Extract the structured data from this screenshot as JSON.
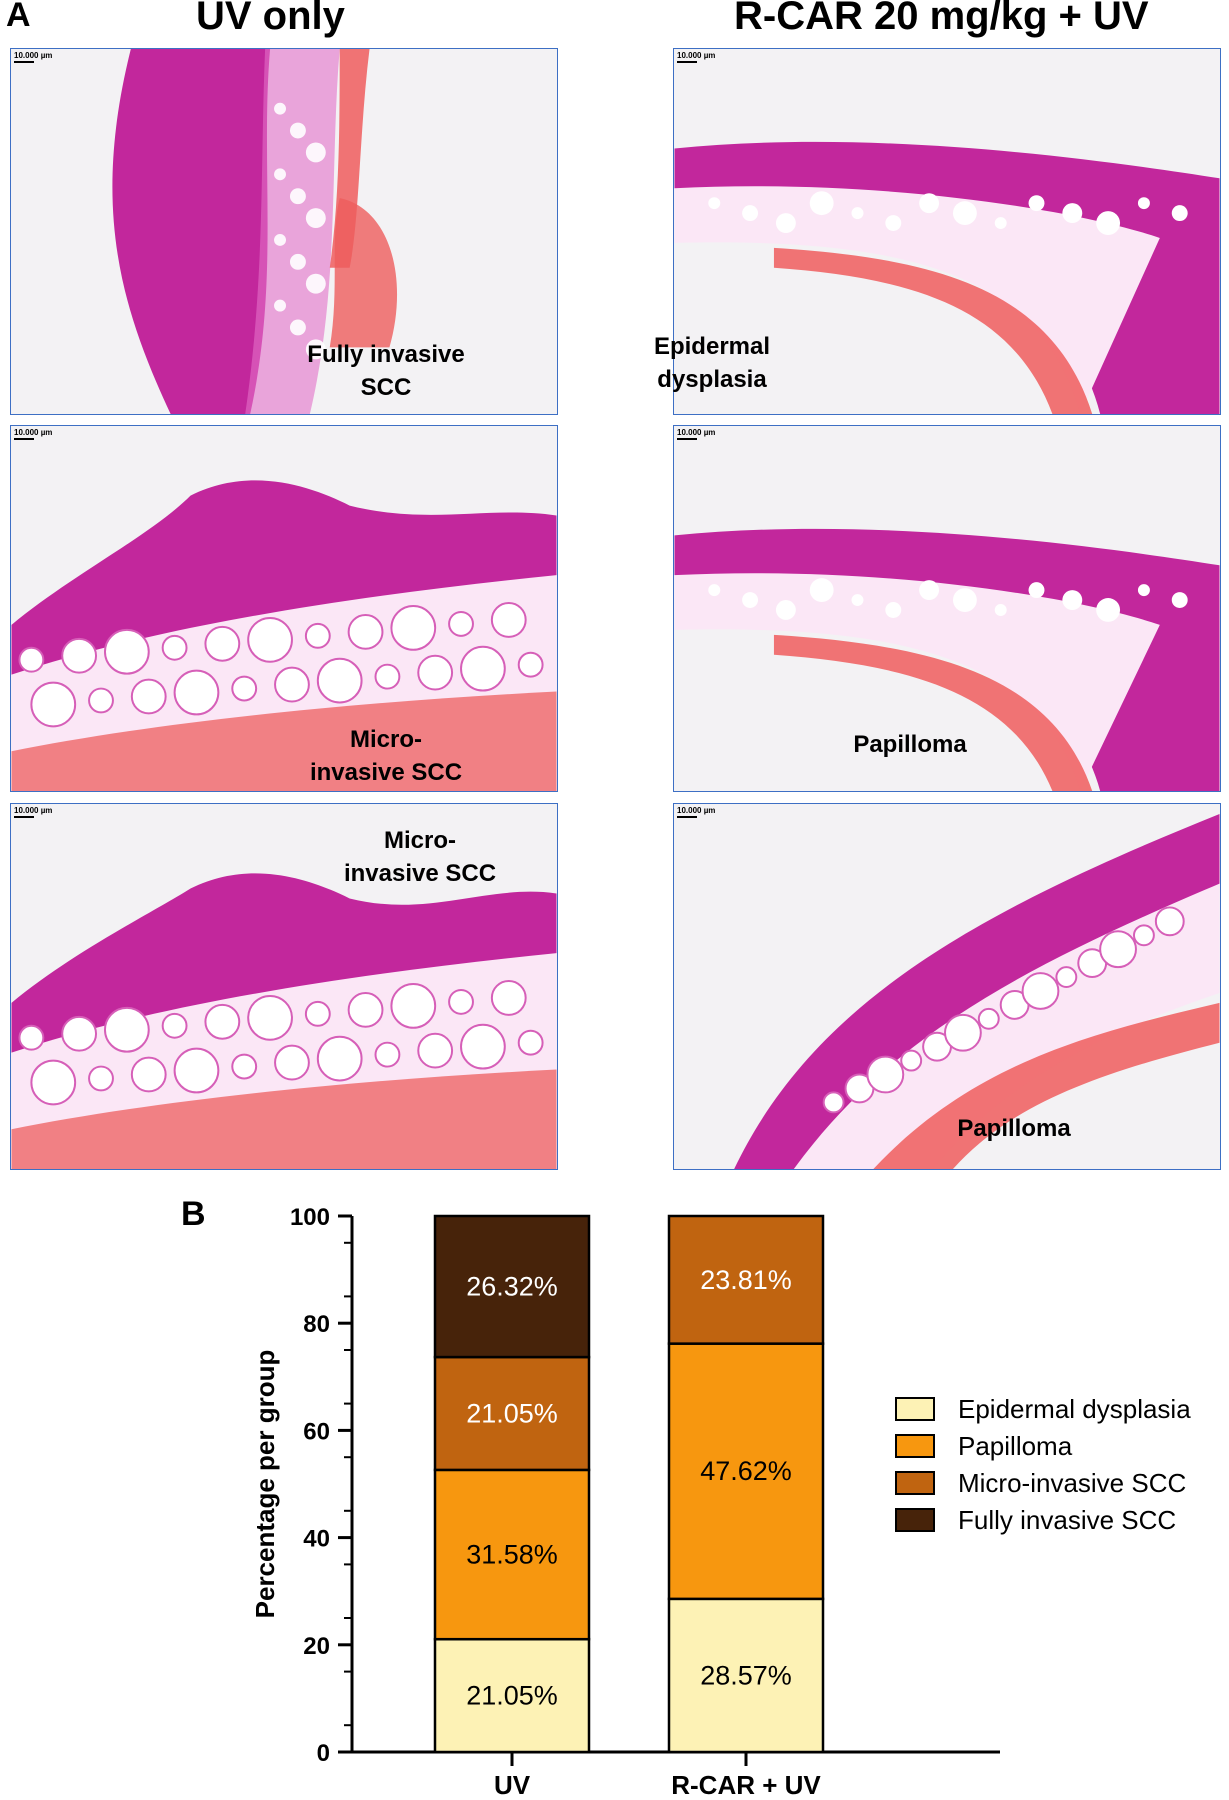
{
  "figure": {
    "panel_a_letter": "A",
    "panel_b_letter": "B",
    "column_titles": [
      "UV only",
      "R-CAR 20 mg/kg + UV"
    ],
    "scale_bar_text": "10.000 µm",
    "micrographs": [
      {
        "label": "Fully invasive\nSCC",
        "variant": "invasive"
      },
      {
        "label": "Epidermal\ndysplasia",
        "variant": "arc"
      },
      {
        "label": "Micro-\ninvasive SCC",
        "variant": "bulge"
      },
      {
        "label": "Papilloma",
        "variant": "arc2"
      },
      {
        "label": "Micro-\ninvasive SCC",
        "variant": "bulge2"
      },
      {
        "label": "Papilloma",
        "variant": "diag"
      }
    ],
    "colors": {
      "micrograph_border": "#3d6fc4",
      "tissue_magenta": "#c2279c",
      "tissue_pink": "#e36fc8",
      "muscle_red": "#ee5d5d"
    }
  },
  "chart_data": {
    "type": "bar",
    "stacked": true,
    "categories": [
      "UV",
      "R-CAR + UV"
    ],
    "ylabel": "Percentage per group",
    "ylim": [
      0,
      100
    ],
    "yticks": [
      0,
      20,
      40,
      60,
      80,
      100
    ],
    "legend_position": "right",
    "series": [
      {
        "name": "Epidermal dysplasia",
        "color": "#fdf2b5",
        "values": [
          21.05,
          28.57
        ],
        "labels": [
          "21.05%",
          "28.57%"
        ]
      },
      {
        "name": "Papilloma",
        "color": "#f7970f",
        "values": [
          31.58,
          47.62
        ],
        "labels": [
          "31.58%",
          "47.62%"
        ]
      },
      {
        "name": "Micro-invasive SCC",
        "color": "#c06410",
        "values": [
          21.05,
          23.81
        ],
        "labels": [
          "21.05%",
          "23.81%"
        ]
      },
      {
        "name": "Fully invasive SCC",
        "color": "#47230a",
        "values": [
          26.32,
          0
        ],
        "labels": [
          "26.32%",
          ""
        ]
      }
    ]
  }
}
